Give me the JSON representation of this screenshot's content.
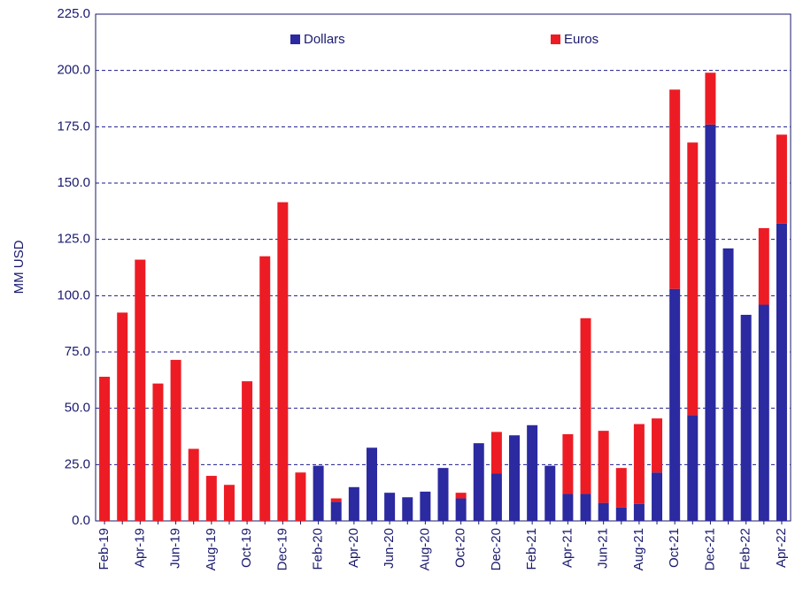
{
  "chart_data": {
    "type": "stacked_bar",
    "y_label": "MM USD",
    "categories": [
      "Feb-19",
      null,
      "Apr-19",
      null,
      "Jun-19",
      null,
      "Aug-19",
      null,
      "Oct-19",
      null,
      "Dec-19",
      null,
      "Feb-20",
      null,
      "Apr-20",
      null,
      "Jun-20",
      null,
      "Aug-20",
      null,
      "Oct-20",
      null,
      "Dec-20",
      null,
      "Feb-21",
      null,
      "Apr-21",
      null,
      "Jun-21",
      null,
      "Aug-21",
      null,
      "Oct-21",
      null,
      "Dec-21",
      null,
      "Feb-22",
      null,
      "Apr-22"
    ],
    "series": [
      {
        "name": "Dollars",
        "color": "#2b2aa0",
        "values": [
          0,
          0,
          0,
          0,
          0,
          0,
          0,
          0,
          0,
          0,
          0,
          0,
          24.5,
          8.5,
          15,
          32.5,
          12.5,
          10.5,
          13,
          23.5,
          10,
          34.5,
          21,
          38,
          42.5,
          24.5,
          12,
          12,
          8,
          6,
          7.5,
          21.5,
          103,
          47,
          176,
          121,
          91.5,
          96,
          132
        ]
      },
      {
        "name": "Euros",
        "color": "#ed1c24",
        "values": [
          64,
          92.5,
          116,
          61,
          71.5,
          32,
          20,
          16,
          62,
          117.5,
          141.5,
          21.5,
          0,
          1.5,
          0,
          0,
          0,
          0,
          0,
          0,
          2.5,
          0,
          18.5,
          0,
          0,
          0,
          26.5,
          78,
          32,
          17.5,
          35.5,
          24,
          88.5,
          121,
          23,
          0,
          0,
          34,
          39.5
        ]
      }
    ],
    "ylim": [
      0,
      225
    ],
    "yticks": [
      {
        "value": 0,
        "label": "0.0"
      },
      {
        "value": 25,
        "label": "25.0"
      },
      {
        "value": 50,
        "label": "50.0"
      },
      {
        "value": 75,
        "label": "75.0"
      },
      {
        "value": 100,
        "label": "100.0"
      },
      {
        "value": 125,
        "label": "125.0"
      },
      {
        "value": 150,
        "label": "150.0"
      },
      {
        "value": 175,
        "label": "175.0"
      },
      {
        "value": 200,
        "label": "200.0"
      },
      {
        "value": 225,
        "label": "225.0"
      }
    ],
    "grid": true,
    "legend": "top"
  }
}
